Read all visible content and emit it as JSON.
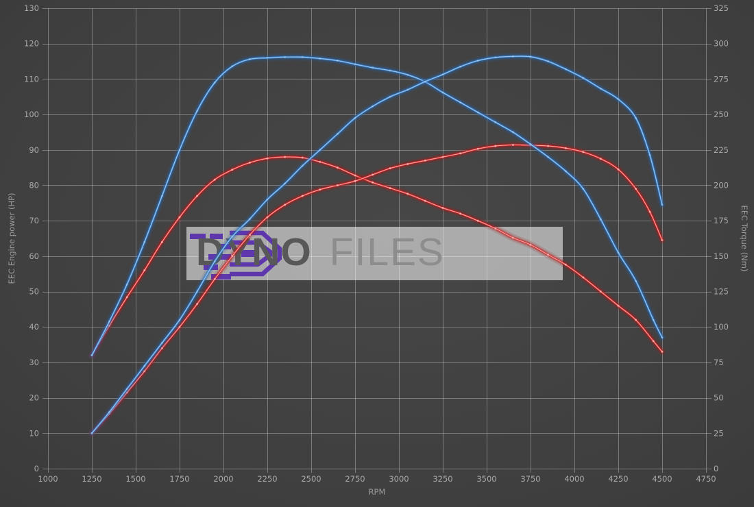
{
  "axes": {
    "x": {
      "label": "RPM",
      "min": 1000,
      "max": 4750,
      "ticks": [
        1000,
        1250,
        1500,
        1750,
        2000,
        2250,
        2500,
        2750,
        3000,
        3250,
        3500,
        3750,
        4000,
        4250,
        4500,
        4750
      ]
    },
    "y_left": {
      "label": "EEC Engine power (HP)",
      "min": 0,
      "max": 130,
      "ticks": [
        0,
        10,
        20,
        30,
        40,
        50,
        60,
        70,
        80,
        90,
        100,
        110,
        120,
        130
      ]
    },
    "y_right": {
      "label": "EEC Torque (Nm)",
      "min": 0,
      "max": 325,
      "ticks": [
        0,
        25,
        50,
        75,
        100,
        125,
        150,
        175,
        200,
        225,
        250,
        275,
        300,
        325
      ]
    }
  },
  "watermark": {
    "brand_bold": "DYNO",
    "brand_light": "FILES",
    "logo_color": "#5a2fae"
  },
  "colors": {
    "background_center": "#474747",
    "background_edge": "#313131",
    "grid": "rgba(205,205,205,0.42)",
    "tick_text": "#aaaaaa",
    "axis_title_text": "#9a9a9a",
    "blue": "#3f87cf",
    "blue_glow": "#2364b0",
    "blue_core": "#aed0f2",
    "red": "#d32b2b",
    "red_glow": "#b01717",
    "red_core": "#ffb9b9"
  },
  "chart_data": {
    "type": "line",
    "title": "",
    "xlabel": "RPM",
    "ylabel_left": "EEC Engine power (HP)",
    "ylabel_right": "EEC Torque (Nm)",
    "x_range": [
      1000,
      4750
    ],
    "y_left_range": [
      0,
      130
    ],
    "y_right_range": [
      0,
      325
    ],
    "grid": true,
    "legend": false,
    "series": [
      {
        "name": "torque-red",
        "axis": "right",
        "unit": "Nm",
        "color_key": "red",
        "glow_key": "red_glow",
        "core_key": "red_core",
        "marker_opacity": 0.75,
        "points": [
          [
            1250,
            80
          ],
          [
            1350,
            101
          ],
          [
            1450,
            121
          ],
          [
            1550,
            140
          ],
          [
            1650,
            160
          ],
          [
            1750,
            177.5
          ],
          [
            1850,
            192.5
          ],
          [
            1950,
            204
          ],
          [
            2050,
            211
          ],
          [
            2150,
            216
          ],
          [
            2250,
            219
          ],
          [
            2350,
            220
          ],
          [
            2450,
            219.5
          ],
          [
            2550,
            216.5
          ],
          [
            2650,
            212.5
          ],
          [
            2750,
            207
          ],
          [
            2850,
            202
          ],
          [
            2950,
            198
          ],
          [
            3050,
            194
          ],
          [
            3150,
            189
          ],
          [
            3250,
            184
          ],
          [
            3350,
            180
          ],
          [
            3450,
            175
          ],
          [
            3550,
            169.5
          ],
          [
            3650,
            163
          ],
          [
            3750,
            158
          ],
          [
            3850,
            151
          ],
          [
            3950,
            144
          ],
          [
            4050,
            135
          ],
          [
            4150,
            125
          ],
          [
            4250,
            115
          ],
          [
            4350,
            105
          ],
          [
            4450,
            90
          ],
          [
            4500,
            82.5
          ]
        ]
      },
      {
        "name": "power-red",
        "axis": "left",
        "unit": "HP",
        "color_key": "red",
        "glow_key": "red_glow",
        "core_key": "red_core",
        "marker_opacity": 0.75,
        "points": [
          [
            1250,
            10
          ],
          [
            1350,
            15.5
          ],
          [
            1450,
            21.5
          ],
          [
            1550,
            27.5
          ],
          [
            1650,
            34
          ],
          [
            1750,
            40
          ],
          [
            1850,
            46.5
          ],
          [
            1950,
            53.5
          ],
          [
            2050,
            60
          ],
          [
            2150,
            66
          ],
          [
            2250,
            71
          ],
          [
            2350,
            74.5
          ],
          [
            2450,
            77
          ],
          [
            2550,
            78.8
          ],
          [
            2650,
            80
          ],
          [
            2750,
            81.2
          ],
          [
            2850,
            83
          ],
          [
            2950,
            84.8
          ],
          [
            3050,
            86
          ],
          [
            3150,
            87
          ],
          [
            3250,
            88
          ],
          [
            3350,
            89
          ],
          [
            3450,
            90.3
          ],
          [
            3550,
            91.1
          ],
          [
            3650,
            91.4
          ],
          [
            3750,
            91.3
          ],
          [
            3850,
            91.1
          ],
          [
            3950,
            90.5
          ],
          [
            4050,
            89.4
          ],
          [
            4150,
            87.5
          ],
          [
            4250,
            84.5
          ],
          [
            4350,
            79
          ],
          [
            4430,
            72.5
          ],
          [
            4500,
            64.5
          ]
        ]
      },
      {
        "name": "torque-blue",
        "axis": "right",
        "unit": "Nm",
        "color_key": "blue",
        "glow_key": "blue_glow",
        "core_key": "blue_core",
        "marker_opacity": 0.45,
        "points": [
          [
            1250,
            80
          ],
          [
            1350,
            104
          ],
          [
            1450,
            130
          ],
          [
            1550,
            160
          ],
          [
            1650,
            192.5
          ],
          [
            1750,
            225
          ],
          [
            1850,
            252.5
          ],
          [
            1950,
            272.5
          ],
          [
            2050,
            284
          ],
          [
            2150,
            289
          ],
          [
            2250,
            290
          ],
          [
            2350,
            290.5
          ],
          [
            2450,
            290.5
          ],
          [
            2550,
            289.5
          ],
          [
            2650,
            288
          ],
          [
            2750,
            285.5
          ],
          [
            2850,
            283
          ],
          [
            2950,
            281
          ],
          [
            3050,
            278
          ],
          [
            3150,
            273
          ],
          [
            3250,
            265.5
          ],
          [
            3350,
            258.5
          ],
          [
            3450,
            251.5
          ],
          [
            3550,
            244.5
          ],
          [
            3650,
            237.5
          ],
          [
            3750,
            229
          ],
          [
            3850,
            220
          ],
          [
            3950,
            210
          ],
          [
            4050,
            197.5
          ],
          [
            4150,
            176
          ],
          [
            4250,
            152.5
          ],
          [
            4350,
            132.5
          ],
          [
            4450,
            105
          ],
          [
            4500,
            92.5
          ]
        ]
      },
      {
        "name": "power-blue",
        "axis": "left",
        "unit": "HP",
        "color_key": "blue",
        "glow_key": "blue_glow",
        "core_key": "blue_core",
        "marker_opacity": 0.45,
        "points": [
          [
            1250,
            10
          ],
          [
            1350,
            16
          ],
          [
            1450,
            22.5
          ],
          [
            1550,
            29
          ],
          [
            1650,
            35.5
          ],
          [
            1750,
            42
          ],
          [
            1850,
            50
          ],
          [
            1950,
            58.5
          ],
          [
            2050,
            65.5
          ],
          [
            2150,
            70.5
          ],
          [
            2250,
            76
          ],
          [
            2350,
            80.5
          ],
          [
            2450,
            85.5
          ],
          [
            2550,
            90
          ],
          [
            2650,
            94.5
          ],
          [
            2750,
            99
          ],
          [
            2850,
            102.3
          ],
          [
            2950,
            105
          ],
          [
            3050,
            107
          ],
          [
            3150,
            109.3
          ],
          [
            3250,
            111.3
          ],
          [
            3350,
            113.5
          ],
          [
            3450,
            115.2
          ],
          [
            3550,
            116.1
          ],
          [
            3650,
            116.4
          ],
          [
            3750,
            116.3
          ],
          [
            3850,
            115
          ],
          [
            3950,
            112.8
          ],
          [
            4050,
            110.3
          ],
          [
            4150,
            107.3
          ],
          [
            4250,
            104.3
          ],
          [
            4350,
            99
          ],
          [
            4430,
            88.5
          ],
          [
            4500,
            74.5
          ]
        ]
      }
    ]
  }
}
